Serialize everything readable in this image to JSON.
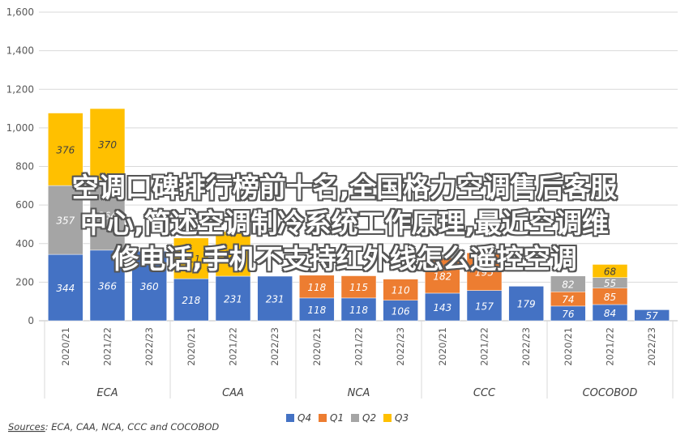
{
  "chart_data": {
    "type": "bar",
    "stacked": true,
    "y_ticks": [
      "0",
      "200",
      "400",
      "600",
      "800",
      "1,000",
      "1,200",
      "1,400",
      "1,600"
    ],
    "ylim": [
      0,
      1600
    ],
    "grid": true,
    "legend_position": "bottom",
    "source_label": "Sources",
    "source_text": ": ECA, CAA, NCA, CCC and COCOBOD",
    "groups": [
      {
        "name": "ECA",
        "categories": [
          "2020/21",
          "2021/22",
          "2022/23"
        ]
      },
      {
        "name": "CAA",
        "categories": [
          "2020/21",
          "2021/22",
          "2022/23"
        ]
      },
      {
        "name": "NCA",
        "categories": [
          "2020/21",
          "2021/22",
          "2022/23"
        ]
      },
      {
        "name": "CCC",
        "categories": [
          "2020/21",
          "2021/22",
          "2022/23"
        ]
      },
      {
        "name": "COCOBOD",
        "categories": [
          "2020/21",
          "2021/22",
          "2022/23"
        ]
      }
    ],
    "series": [
      {
        "name": "Q4",
        "color": "#4472C4",
        "values": [
          344,
          366,
          360,
          218,
          231,
          231,
          118,
          118,
          106,
          143,
          157,
          179,
          76,
          84,
          57
        ]
      },
      {
        "name": "Q1",
        "color": "#ED7D31",
        "values": [
          0,
          0,
          0,
          0,
          0,
          0,
          118,
          115,
          110,
          182,
          195,
          0,
          74,
          85,
          0
        ]
      },
      {
        "name": "Q2",
        "color": "#A5A5A5",
        "values": [
          357,
          364,
          0,
          0,
          0,
          0,
          0,
          0,
          0,
          0,
          0,
          0,
          82,
          55,
          0
        ]
      },
      {
        "name": "Q3",
        "color": "#FFC000",
        "values": [
          376,
          370,
          0,
          211,
          231,
          0,
          0,
          0,
          0,
          0,
          0,
          0,
          0,
          68,
          0
        ]
      }
    ],
    "data_labels": [
      [
        "344",
        "366",
        "360",
        "218",
        "231",
        "231",
        "118",
        "118",
        "106",
        "143",
        "157",
        "179",
        "76",
        "84",
        "57"
      ],
      [
        "",
        "",
        "",
        "",
        "",
        "",
        "118",
        "115",
        "110",
        "182",
        "195",
        "",
        "74",
        "85",
        ""
      ],
      [
        "357",
        "364",
        "",
        "",
        "",
        "",
        "",
        "",
        "",
        "",
        "",
        "",
        "82",
        "55",
        ""
      ],
      [
        "376",
        "370",
        "",
        "211",
        "231",
        "",
        "",
        "",
        "",
        "",
        "",
        "",
        "",
        "68",
        ""
      ]
    ]
  },
  "overlay_text": {
    "line1": "空调口碑排行榜前十名,全国格力空调售后客服",
    "line2": "中心,简述空调制冷系统工作原理,最近空调维",
    "line3": "修电话,手机不支持红外线怎么遥控空调"
  }
}
